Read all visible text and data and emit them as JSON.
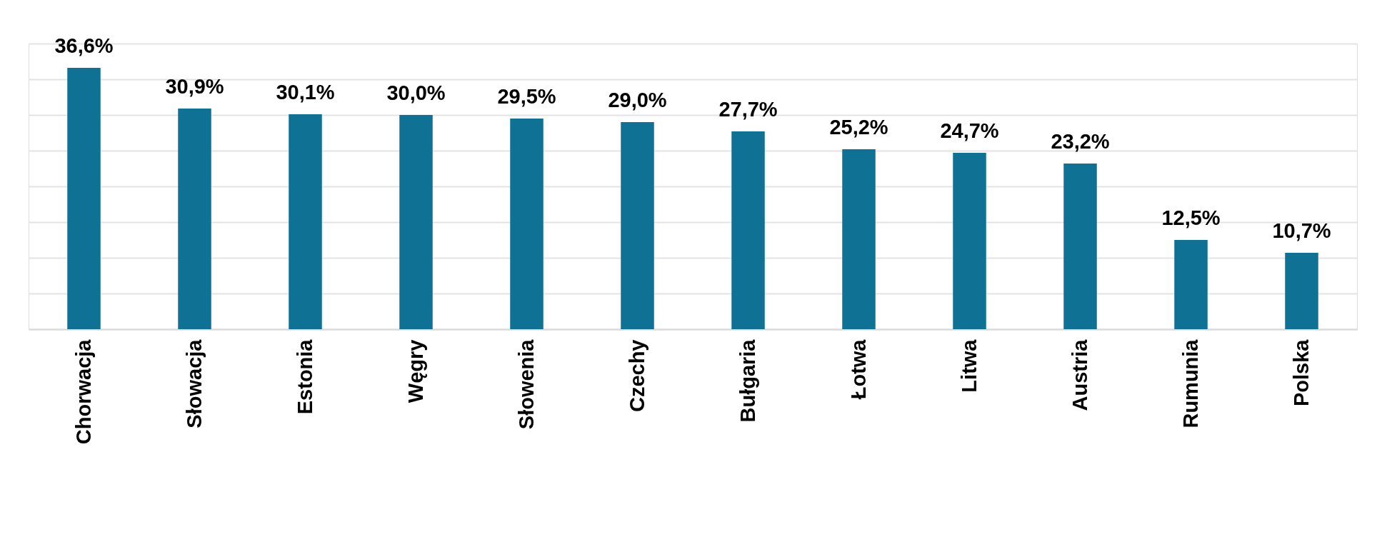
{
  "chart_data": {
    "type": "bar",
    "categories": [
      "Chorwacja",
      "Słowacja",
      "Estonia",
      "Węgry",
      "Słowenia",
      "Czechy",
      "Bułgaria",
      "Łotwa",
      "Litwa",
      "Austria",
      "Rumunia",
      "Polska"
    ],
    "values": [
      36.6,
      30.9,
      30.1,
      30.0,
      29.5,
      29.0,
      27.7,
      25.2,
      24.7,
      23.2,
      12.5,
      10.7
    ],
    "value_labels": [
      "36,6%",
      "30,9%",
      "30,1%",
      "30,0%",
      "29,5%",
      "29,0%",
      "27,7%",
      "25,2%",
      "24,7%",
      "23,2%",
      "12,5%",
      "10,7%"
    ],
    "color": "#0f7194",
    "ylim": [
      0,
      40
    ],
    "yticks": [
      {
        "value": 0,
        "label": null
      },
      {
        "value": 5,
        "label": null
      },
      {
        "value": 10,
        "label": null
      },
      {
        "value": 15,
        "label": null
      },
      {
        "value": 20,
        "label": null
      },
      {
        "value": 25,
        "label": null
      },
      {
        "value": 30,
        "label": null
      },
      {
        "value": 35,
        "label": null
      },
      {
        "value": 40,
        "label": null
      }
    ],
    "grid": "y",
    "tick_labels": "x"
  }
}
